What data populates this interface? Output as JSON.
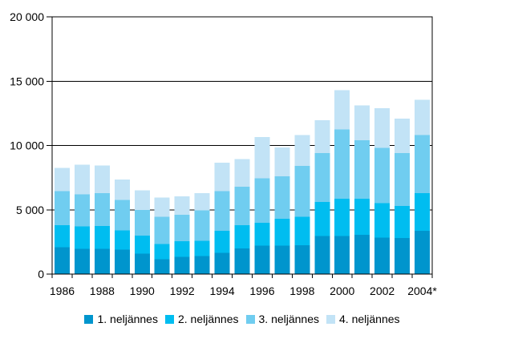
{
  "page": {
    "background_color": "#ffffff",
    "axis_color": "#000000",
    "text_color": "#000000"
  },
  "chart_data": {
    "type": "bar",
    "stacked": true,
    "title": "",
    "xlabel": "",
    "ylabel": "",
    "categories": [
      "1986",
      "1987",
      "1988",
      "1989",
      "1990",
      "1991",
      "1992",
      "1993",
      "1994",
      "1995",
      "1996",
      "1997",
      "1998",
      "1999",
      "2000",
      "2001",
      "2002",
      "2003",
      "2004*"
    ],
    "x_label_step": 2,
    "series": [
      {
        "name": "1. neljännes",
        "color": "#0095cd",
        "values": [
          2100,
          1950,
          1950,
          1900,
          1600,
          1150,
          1350,
          1400,
          1650,
          2000,
          2200,
          2200,
          2250,
          2950,
          2950,
          3050,
          2850,
          2800,
          3350
        ]
      },
      {
        "name": "2. neljännes",
        "color": "#00bdf0",
        "values": [
          1700,
          1750,
          1800,
          1500,
          1400,
          1200,
          1200,
          1200,
          1700,
          1800,
          1800,
          2100,
          2200,
          2650,
          2900,
          2800,
          2650,
          2500,
          2950
        ]
      },
      {
        "name": "3. neljännes",
        "color": "#70cdf0",
        "values": [
          2650,
          2500,
          2550,
          2350,
          2000,
          2100,
          2050,
          2350,
          3100,
          3000,
          3450,
          3300,
          3950,
          3800,
          5400,
          4550,
          4300,
          4100,
          4500
        ]
      },
      {
        "name": "4. neljännes",
        "color": "#c2e3f6",
        "values": [
          1800,
          2300,
          2150,
          1600,
          1500,
          1500,
          1450,
          1350,
          2200,
          2150,
          3200,
          2250,
          2400,
          2550,
          3050,
          2700,
          3100,
          2700,
          2750
        ]
      }
    ],
    "ylim": [
      0,
      20000
    ],
    "y_ticks": [
      0,
      5000,
      10000,
      15000,
      20000
    ],
    "y_tick_labels": [
      "0",
      "5 000",
      "10 000",
      "15 000",
      "20 000"
    ],
    "grid": "horizontal",
    "legend_position": "bottom"
  }
}
